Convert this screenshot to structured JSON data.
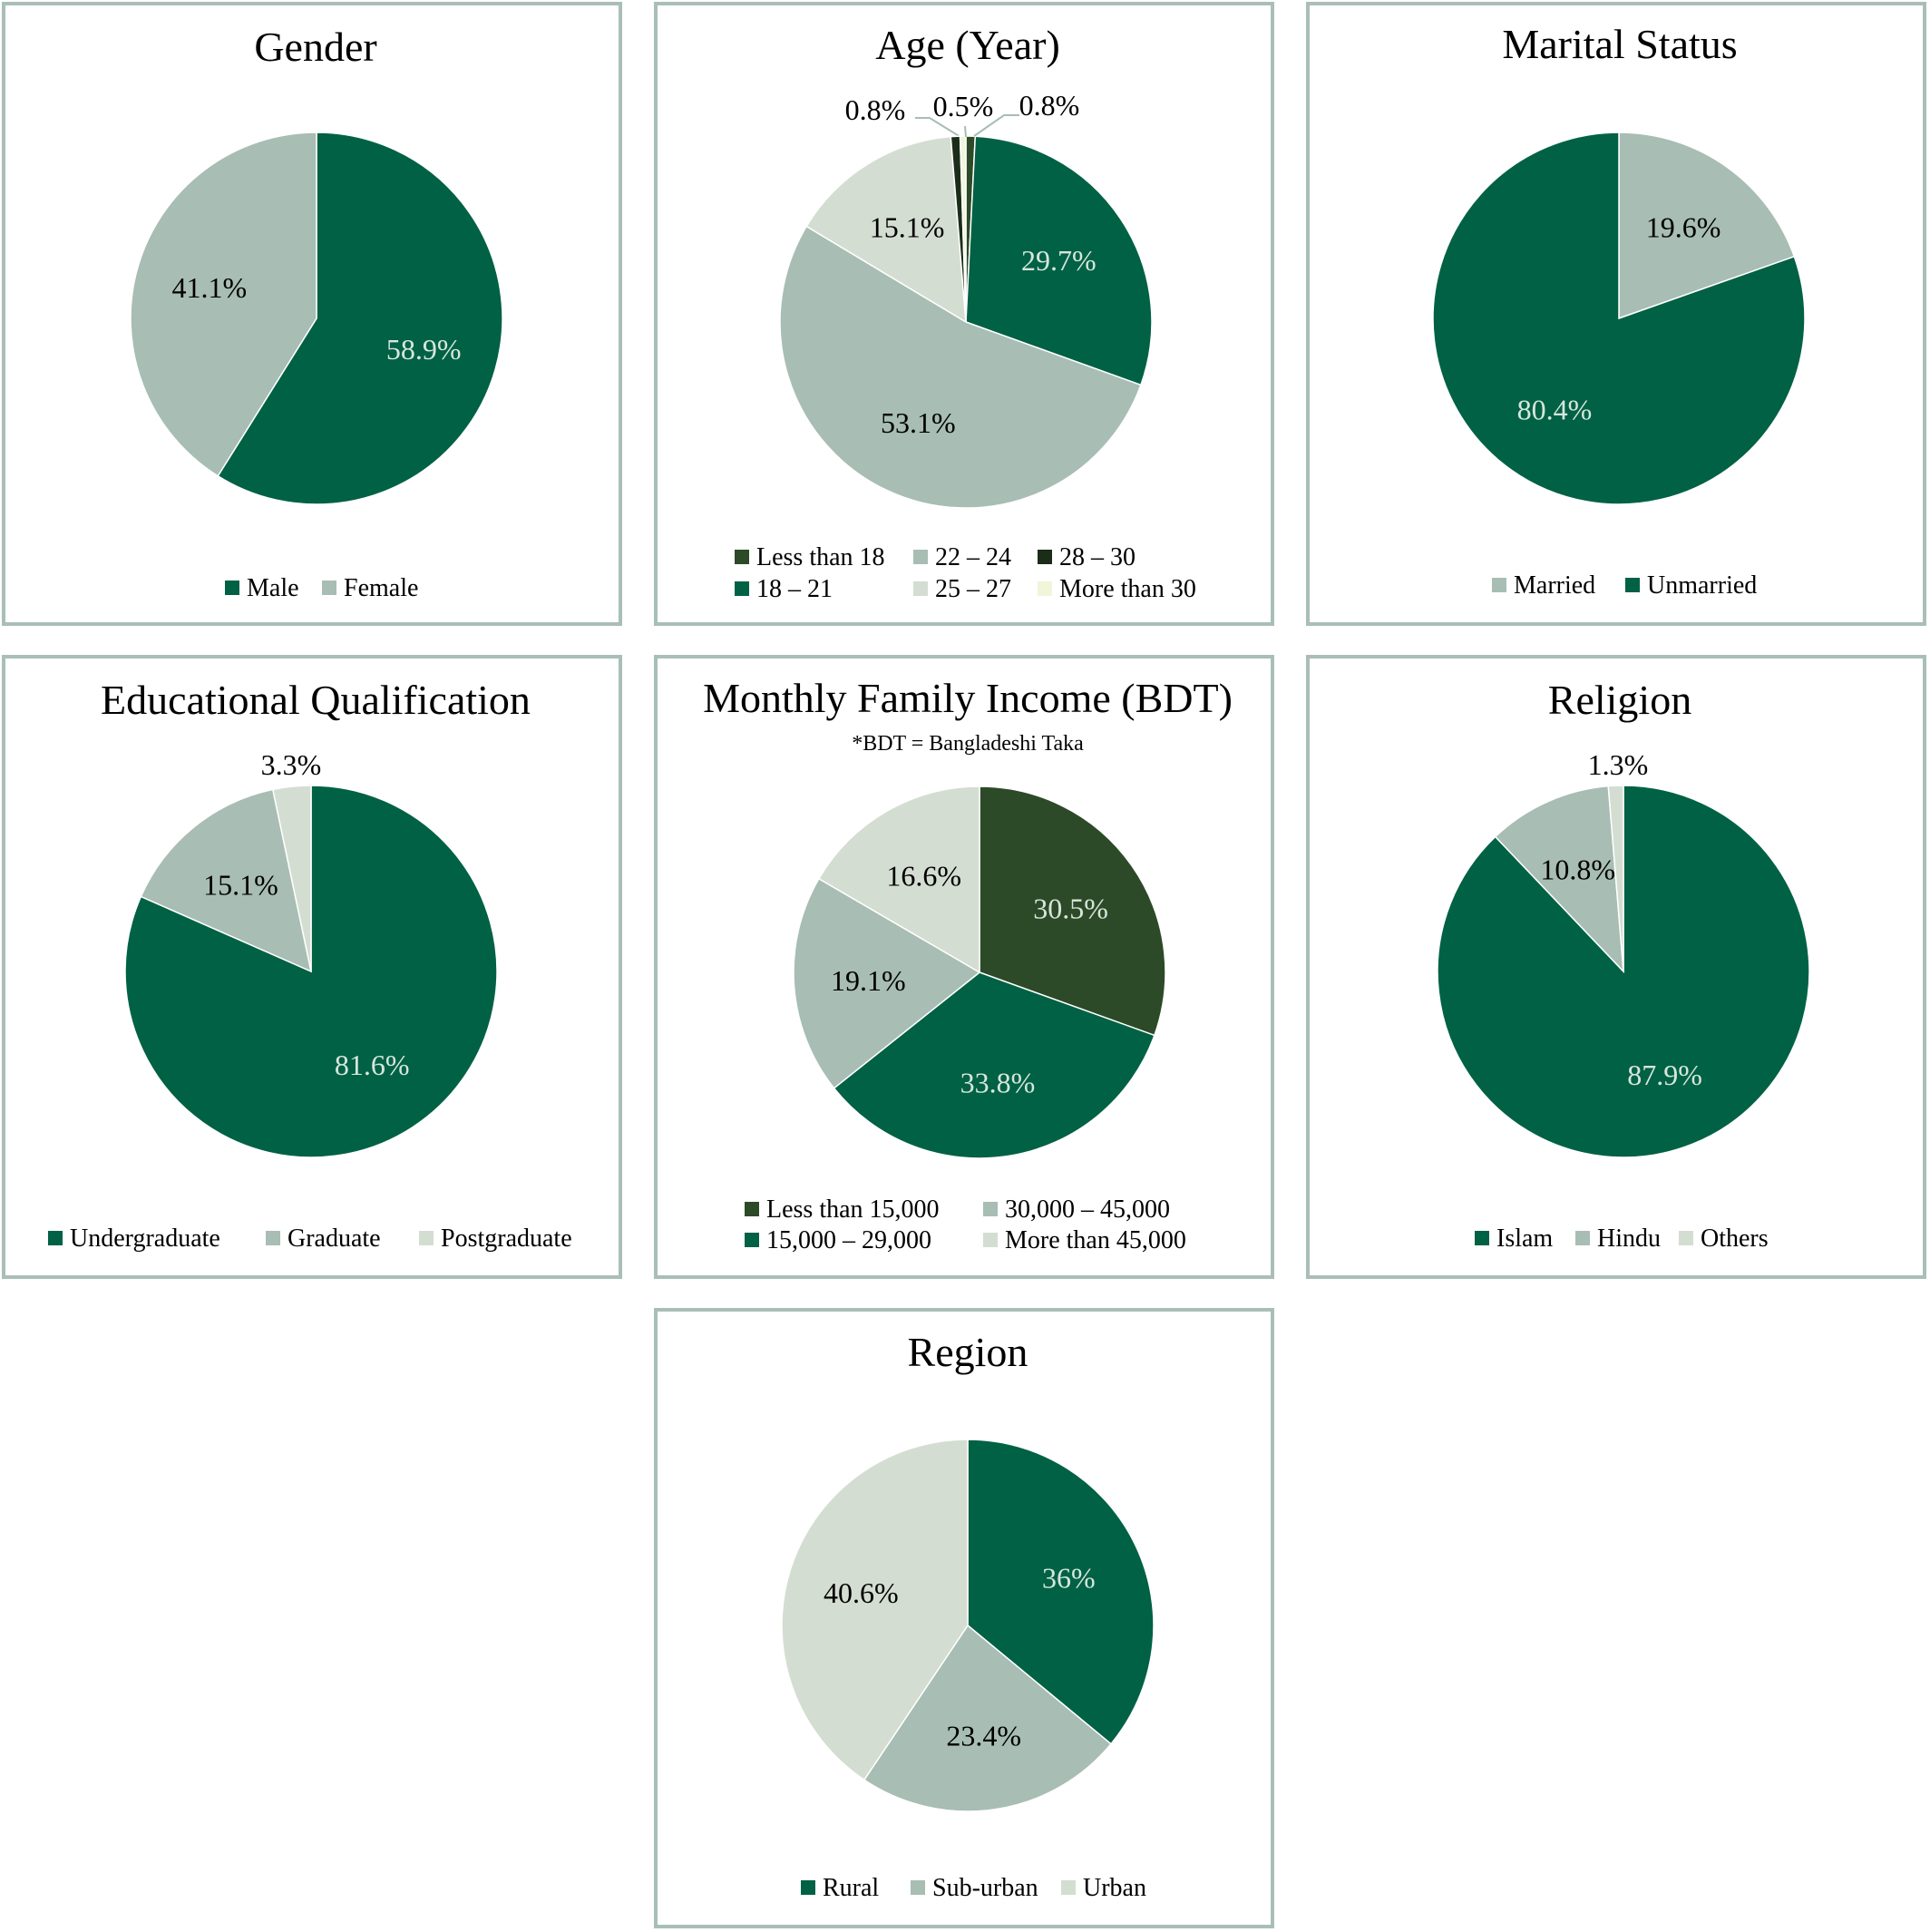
{
  "chart_data": [
    {
      "type": "pie",
      "title": "Gender",
      "categories": [
        "Male",
        "Female"
      ],
      "values": [
        58.9,
        41.1
      ],
      "labels": [
        "58.9%",
        "41.1%"
      ],
      "colors": [
        "#006144",
        "#a8bdb4"
      ],
      "label_colors": [
        "#d7e6dd",
        "#000000"
      ],
      "legend": {
        "placement": "bottom",
        "columns": 2,
        "rows": [
          [
            "Male",
            "Female"
          ]
        ]
      }
    },
    {
      "type": "pie",
      "title": "Age (Year)",
      "categories": [
        "Less than 18",
        "18 – 21",
        "22 – 24",
        "25 – 27",
        "28 – 30",
        "More than 30"
      ],
      "values": [
        0.8,
        29.7,
        53.1,
        15.1,
        0.8,
        0.5
      ],
      "labels": [
        "0.8%",
        "29.7%",
        "53.1%",
        "15.1%",
        "0.8%",
        "0.5%"
      ],
      "colors": [
        "#2c4a27",
        "#006144",
        "#a8bdb4",
        "#d4ddd1",
        "#1b2d19",
        "#f1f5d9"
      ],
      "label_colors": [
        "#000000",
        "#d7e6dd",
        "#000000",
        "#000000",
        "#000000",
        "#000000"
      ],
      "legend": {
        "placement": "bottom",
        "columns": 3,
        "rows": [
          [
            "Less than 18",
            "22 – 24",
            "28 – 30"
          ],
          [
            "18 – 21",
            "25 – 27",
            "More than 30"
          ]
        ]
      }
    },
    {
      "type": "pie",
      "title": "Marital Status",
      "categories": [
        "Married",
        "Unmarried"
      ],
      "values": [
        19.6,
        80.4
      ],
      "labels": [
        "19.6%",
        "80.4%"
      ],
      "colors": [
        "#a8bdb4",
        "#006144"
      ],
      "label_colors": [
        "#000000",
        "#d7e6dd"
      ],
      "legend": {
        "placement": "bottom",
        "columns": 2,
        "rows": [
          [
            "Married",
            "Unmarried"
          ]
        ]
      }
    },
    {
      "type": "pie",
      "title": "Educational Qualification",
      "categories": [
        "Undergraduate",
        "Graduate",
        "Postgraduate"
      ],
      "values": [
        81.6,
        15.1,
        3.3
      ],
      "labels": [
        "81.6%",
        "15.1%",
        "3.3%"
      ],
      "colors": [
        "#006144",
        "#a8bdb4",
        "#d4ddd1"
      ],
      "label_colors": [
        "#d7e6dd",
        "#000000",
        "#000000"
      ],
      "legend": {
        "placement": "bottom",
        "columns": 3,
        "rows": [
          [
            "Undergraduate",
            "Graduate",
            "Postgraduate"
          ]
        ]
      }
    },
    {
      "type": "pie",
      "title": "Monthly Family Income (BDT)",
      "subtitle": "*BDT = Bangladeshi Taka",
      "categories": [
        "Less than 15,000",
        "15,000 – 29,000",
        "30,000 – 45,000",
        "More than 45,000"
      ],
      "values": [
        30.5,
        33.8,
        19.1,
        16.6
      ],
      "labels": [
        "30.5%",
        "33.8%",
        "19.1%",
        "16.6%"
      ],
      "colors": [
        "#2c4a27",
        "#006144",
        "#a8bdb4",
        "#d4ddd1"
      ],
      "label_colors": [
        "#d7e6dd",
        "#d7e6dd",
        "#000000",
        "#000000"
      ],
      "legend": {
        "placement": "bottom",
        "columns": 2,
        "rows": [
          [
            "Less than 15,000",
            "30,000 – 45,000"
          ],
          [
            "15,000 – 29,000",
            "More than 45,000"
          ]
        ]
      }
    },
    {
      "type": "pie",
      "title": "Religion",
      "categories": [
        "Islam",
        "Hindu",
        "Others"
      ],
      "values": [
        87.9,
        10.8,
        1.3
      ],
      "labels": [
        "87.9%",
        "10.8%",
        "1.3%"
      ],
      "colors": [
        "#006144",
        "#a8bdb4",
        "#d4ddd1"
      ],
      "label_colors": [
        "#d7e6dd",
        "#000000",
        "#000000"
      ],
      "legend": {
        "placement": "bottom",
        "columns": 3,
        "rows": [
          [
            "Islam",
            "Hindu",
            "Others"
          ]
        ]
      }
    },
    {
      "type": "pie",
      "title": "Region",
      "categories": [
        "Rural",
        "Sub-urban",
        "Urban"
      ],
      "values": [
        36,
        23.4,
        40.6
      ],
      "labels": [
        "36%",
        "23.4%",
        "40.6%"
      ],
      "colors": [
        "#006144",
        "#a8bdb4",
        "#d4ddd1"
      ],
      "label_colors": [
        "#d7e6dd",
        "#000000",
        "#000000"
      ],
      "legend": {
        "placement": "bottom",
        "columns": 3,
        "rows": [
          [
            "Rural",
            "Sub-urban",
            "Urban"
          ]
        ]
      }
    }
  ]
}
